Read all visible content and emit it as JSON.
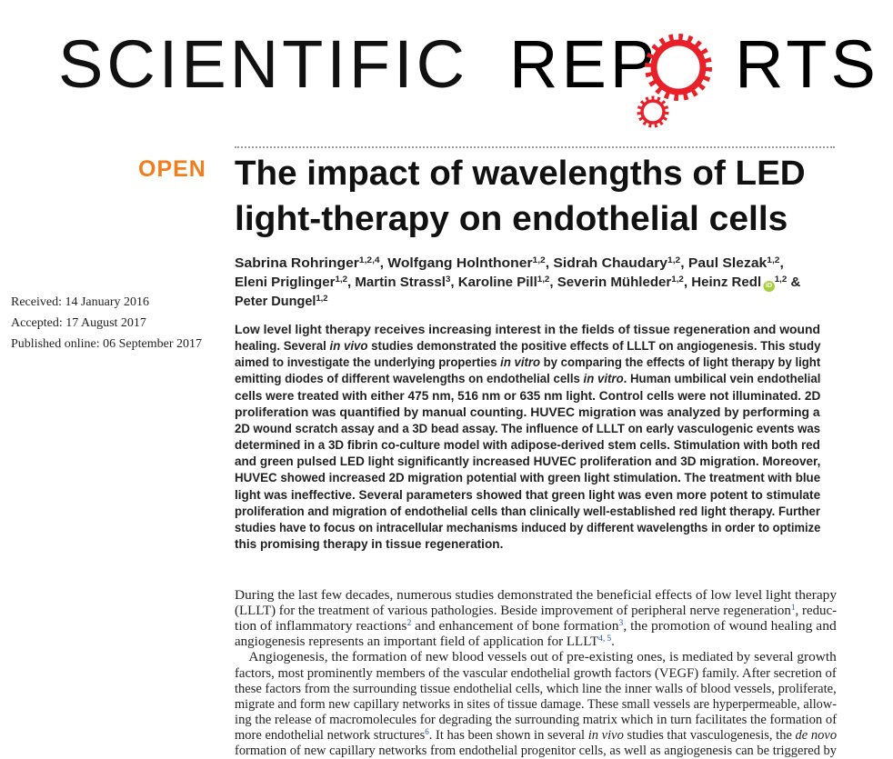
{
  "journal": {
    "logo_part1": "SCIENTIFIC",
    "logo_part2a": "REP",
    "logo_part2b": "RTS",
    "logo_full": "SCIENTIFIC REPORTS",
    "gear_color": "#e8202a"
  },
  "open_label": "OPEN",
  "open_color": "#f07d1e",
  "title_lines": [
    "The impact of wavelengths of LED",
    "light-therapy on endothelial cells"
  ],
  "authors_lines": [
    [
      [
        "Sabrina Rohringer",
        ""
      ],
      [
        "1,2,4",
        "s"
      ],
      [
        ", Wolfgang Holnthoner",
        ""
      ],
      [
        "1,2",
        "s"
      ],
      [
        ", Sidrah Chaudary",
        ""
      ],
      [
        "1,2",
        "s"
      ],
      [
        ", Paul Slezak",
        ""
      ],
      [
        "1,2",
        "s"
      ],
      [
        ",",
        ""
      ]
    ],
    [
      [
        "Eleni Priglinger",
        ""
      ],
      [
        "1,2",
        "s"
      ],
      [
        ", Martin Strassl",
        ""
      ],
      [
        "3",
        "s"
      ],
      [
        ", Karoline Pill",
        ""
      ],
      [
        "1,2",
        "s"
      ],
      [
        ", Severin Mühleder",
        ""
      ],
      [
        "1,2",
        "s"
      ],
      [
        ", Heinz Redl",
        ""
      ],
      [
        "iD",
        "o"
      ],
      [
        "1,2",
        "s"
      ],
      [
        " &",
        ""
      ]
    ],
    [
      [
        "Peter Dungel",
        ""
      ],
      [
        "1,2",
        "s"
      ]
    ]
  ],
  "dates": {
    "received": "Received: 14 January 2016",
    "accepted": "Accepted: 17 August 2017",
    "published": "Published online: 06 September 2017"
  },
  "abstract_lines": [
    [
      [
        "Low level light therapy receives increasing interest in the fields of tissue regeneration and wound",
        ""
      ]
    ],
    [
      [
        "healing. Several ",
        ""
      ],
      [
        "in vivo",
        "i"
      ],
      [
        " studies demonstrated the positive effects of LLLT on angiogenesis. This study",
        ""
      ]
    ],
    [
      [
        "aimed to investigate the underlying properties ",
        ""
      ],
      [
        "in vitro",
        "i"
      ],
      [
        " by comparing the effects of light therapy by light",
        ""
      ]
    ],
    [
      [
        "emitting diodes of different wavelengths on endothelial cells ",
        ""
      ],
      [
        "in vitro",
        "i"
      ],
      [
        ". Human umbilical vein endothelial",
        ""
      ]
    ],
    [
      [
        "cells were treated with either 475 nm, 516 nm or 635 nm light. Control cells were not illuminated. 2D",
        ""
      ]
    ],
    [
      [
        "proliferation was quantified by manual counting. HUVEC migration was analyzed by performing a",
        ""
      ]
    ],
    [
      [
        "2D wound scratch assay and a 3D bead assay. The influence of LLLT on early vasculogenic events was",
        ""
      ]
    ],
    [
      [
        "determined in a 3D fibrin co-culture model with adipose-derived stem cells. Stimulation with both red",
        ""
      ]
    ],
    [
      [
        "and green pulsed LED light significantly increased HUVEC proliferation and 3D migration. Moreover,",
        ""
      ]
    ],
    [
      [
        "HUVEC showed increased 2D migration potential with green light stimulation. The treatment with blue",
        ""
      ]
    ],
    [
      [
        "light was ineffective. Several parameters showed that green light was even more potent to stimulate",
        ""
      ]
    ],
    [
      [
        "proliferation and migration of endothelial cells than clinically well-established red light therapy. Further",
        ""
      ]
    ],
    [
      [
        "studies have to focus on intracellular mechanisms induced by different wavelengths in order to optimize",
        ""
      ]
    ],
    [
      [
        "this promising therapy in tissue regeneration.",
        ""
      ]
    ]
  ],
  "body_lines": [
    [
      [
        "During the last few decades, numerous studies demonstrated the beneficial effects of low level light therapy",
        ""
      ]
    ],
    [
      [
        "(LLLT) for the treatment of various pathologies. Beside improvement of peripheral nerve regeneration",
        ""
      ],
      [
        "1",
        "s"
      ],
      [
        ", reduc-",
        ""
      ]
    ],
    [
      [
        "tion of inflammatory reactions",
        ""
      ],
      [
        "2",
        "s"
      ],
      [
        " and enhancement of bone formation",
        ""
      ],
      [
        "3",
        "s"
      ],
      [
        ", the promotion of wound healing and",
        ""
      ]
    ],
    [
      [
        "angiogenesis represents an important field of application for LLLT",
        ""
      ],
      [
        "4, 5",
        "s"
      ],
      [
        ".",
        ""
      ]
    ],
    [
      [
        " Angiogenesis, the formation of new blood vessels out of pre-existing ones, is mediated by several growth",
        ""
      ]
    ],
    [
      [
        "factors, most prominently members of the vascular endothelial growth factors (VEGF) family. After secretion of",
        ""
      ]
    ],
    [
      [
        "these factors from the surrounding tissue endothelial cells, which line the inner walls of blood vessels, proliferate,",
        ""
      ]
    ],
    [
      [
        "migrate and form new capillary networks in sites of tissue damage. These small vessels are hyperpermeable, allow-",
        ""
      ]
    ],
    [
      [
        "ing the release of macromolecules for degrading the surrounding matrix which in turn facilitates the formation of",
        ""
      ]
    ],
    [
      [
        "more endothelial network structures",
        ""
      ],
      [
        "6",
        "s"
      ],
      [
        ". It has been shown in several ",
        ""
      ],
      [
        "in vivo",
        "i"
      ],
      [
        " studies that vasculogenesis, the ",
        ""
      ],
      [
        "de novo",
        "i"
      ]
    ],
    [
      [
        "formation of new capillary networks from endothelial progenitor cells, as well as angiogenesis can be triggered by",
        ""
      ]
    ]
  ]
}
